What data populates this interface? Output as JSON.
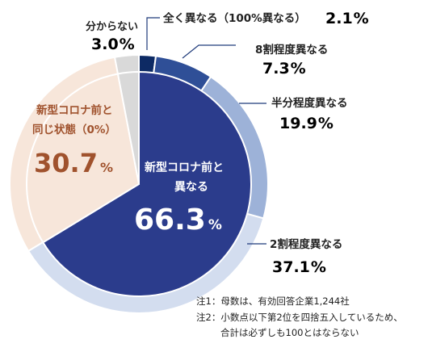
{
  "chart_data": {
    "type": "pie",
    "series": [
      {
        "name": "outer",
        "slices": [
          {
            "label": "全く異なる（100%異なる）",
            "value": 2.1,
            "color": "#0d2a64"
          },
          {
            "label": "8割程度異なる",
            "value": 7.3,
            "color": "#2f4f97"
          },
          {
            "label": "半分程度異なる",
            "value": 19.9,
            "color": "#9db2d8"
          },
          {
            "label": "2割程度異なる",
            "value": 37.1,
            "color": "#d3ddef"
          },
          {
            "label": "新型コロナ前と同じ状態（0%）",
            "value": 30.7,
            "color": "#f7e6da"
          },
          {
            "label": "分からない",
            "value": 3.0,
            "color": "#d9d9d9"
          }
        ]
      },
      {
        "name": "inner",
        "slices": [
          {
            "label": "新型コロナ前と異なる",
            "value": 66.3,
            "color": "#2b3c8c"
          },
          {
            "label": "新型コロナ前と同じ状態（0%）",
            "value": 30.7,
            "color": "#f7e6da"
          },
          {
            "label": "分からない",
            "value": 3.0,
            "color": "#d9d9d9"
          }
        ]
      }
    ],
    "labels": {
      "zen": {
        "text": "全く異なる（100%異なる）",
        "value": "2.1",
        "unit": "%"
      },
      "hachi": {
        "text": "8割程度異なる",
        "value": "7.3",
        "unit": "%"
      },
      "hanbun": {
        "text": "半分程度異なる",
        "value": "19.9",
        "unit": "%"
      },
      "niwari": {
        "text": "2割程度異なる",
        "value": "37.1",
        "unit": "%"
      },
      "onaji_line1": "新型コロナ前と",
      "onaji_line2": "同じ状態（0%）",
      "onaji_value": "30.7",
      "onaji_unit": "%",
      "wakaranai": {
        "text": "分からない",
        "value": "3.0",
        "unit": "%"
      },
      "kotonaru_line1": "新型コロナ前と",
      "kotonaru_line2": "異なる",
      "kotonaru_value": "66.3",
      "kotonaru_unit": "%"
    },
    "notes": [
      "注1：母数は、有効回答企業1,244社",
      "注2：小数点以下第2位を四捨五入しているため、",
      "合計は必ずしも100とはならない"
    ],
    "colors": {
      "onaji_text": "#a0522d",
      "kotonaru_text": "#ffffff",
      "leader_line": "#1f3a7a"
    }
  }
}
